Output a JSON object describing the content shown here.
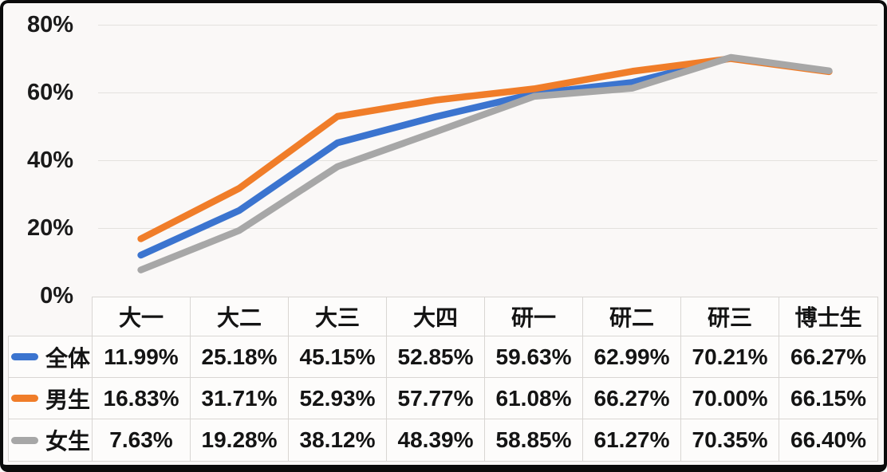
{
  "chart_data": {
    "type": "line",
    "title": "",
    "xlabel": "",
    "ylabel": "",
    "categories": [
      "大一",
      "大二",
      "大三",
      "大四",
      "研一",
      "研二",
      "研三",
      "博士生"
    ],
    "series": [
      {
        "name": "全体",
        "color": "#3B74CF",
        "values": [
          11.99,
          25.18,
          45.15,
          52.85,
          59.63,
          62.99,
          70.21,
          66.27
        ]
      },
      {
        "name": "男生",
        "color": "#F07D29",
        "values": [
          16.83,
          31.71,
          52.93,
          57.77,
          61.08,
          66.27,
          70.0,
          66.15
        ]
      },
      {
        "name": "女生",
        "color": "#A7A7A7",
        "values": [
          7.63,
          19.28,
          38.12,
          48.39,
          58.85,
          61.27,
          70.35,
          66.4
        ]
      }
    ],
    "ylim": [
      0,
      80
    ],
    "ytick_step": 20,
    "yticks": [
      "0%",
      "20%",
      "40%",
      "60%",
      "80%"
    ],
    "grid": true,
    "legend_position": "table-left-column"
  },
  "table": {
    "headers": [
      "大一",
      "大二",
      "大三",
      "大四",
      "研一",
      "研二",
      "研三",
      "博士生"
    ],
    "rows": [
      {
        "label": "全体",
        "values": [
          "11.99%",
          "25.18%",
          "45.15%",
          "52.85%",
          "59.63%",
          "62.99%",
          "70.21%",
          "66.27%"
        ]
      },
      {
        "label": "男生",
        "values": [
          "16.83%",
          "31.71%",
          "52.93%",
          "57.77%",
          "61.08%",
          "66.27%",
          "70.00%",
          "66.15%"
        ]
      },
      {
        "label": "女生",
        "values": [
          "7.63%",
          "19.28%",
          "38.12%",
          "48.39%",
          "58.85%",
          "61.27%",
          "70.35%",
          "66.40%"
        ]
      }
    ]
  }
}
